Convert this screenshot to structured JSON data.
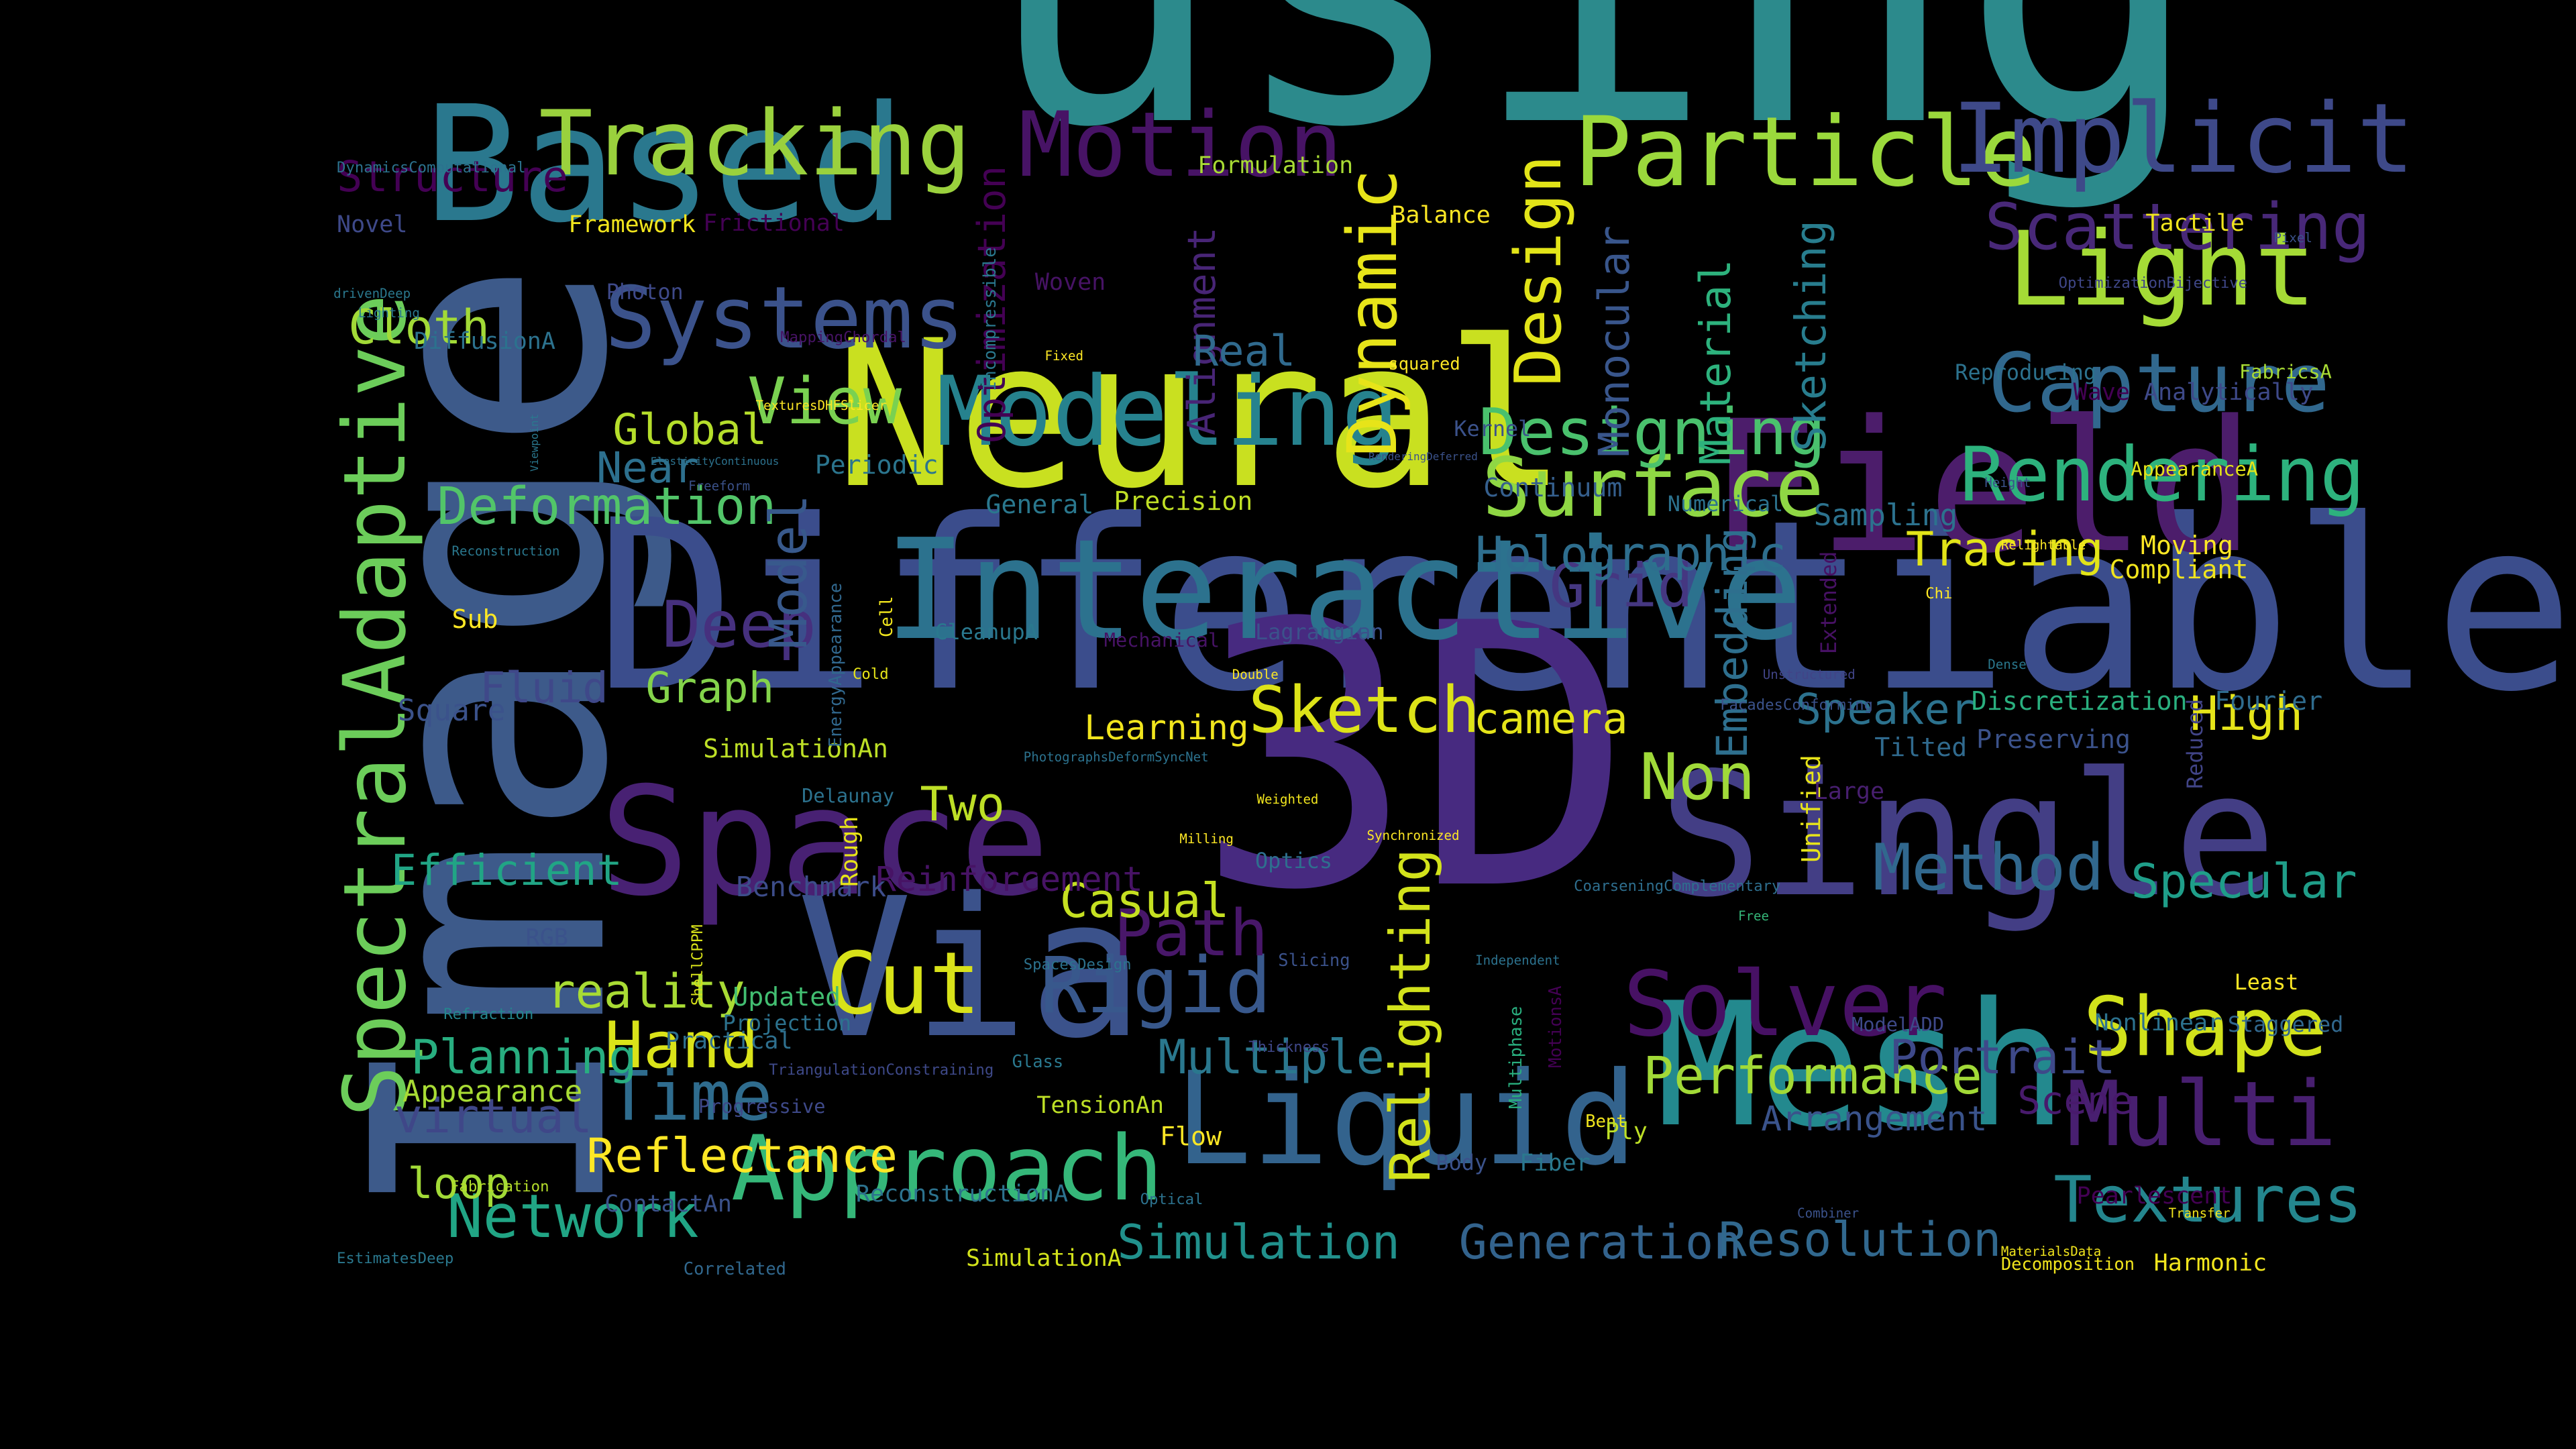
{
  "words": [
    {
      "text": "using",
      "size": 190,
      "color": "#2c8a8c"
    },
    {
      "text": "Image",
      "size": 150,
      "color": "#3d5a8a"
    },
    {
      "text": "Differentiable",
      "size": 110,
      "color": "#3b4d8c"
    },
    {
      "text": "3D",
      "size": 170,
      "color": "#472a80"
    },
    {
      "text": "Neural",
      "size": 95,
      "color": "#c9e020"
    },
    {
      "text": "Field",
      "size": 85,
      "color": "#4c1d6b"
    },
    {
      "text": "Via",
      "size": 90,
      "color": "#3b528b"
    },
    {
      "text": "Mesh",
      "size": 80,
      "color": "#23898e"
    },
    {
      "text": "Single",
      "size": 80,
      "color": "#433e85"
    },
    {
      "text": "Based",
      "size": 75,
      "color": "#2a788e"
    },
    {
      "text": "Space",
      "size": 70,
      "color": "#482173"
    },
    {
      "text": "Interactive",
      "size": 65,
      "color": "#2c728e"
    },
    {
      "text": "Liquid",
      "size": 60,
      "color": "#33638d"
    },
    {
      "text": "Light",
      "size": 48,
      "color": "#a5db36"
    },
    {
      "text": "Particle",
      "size": 45,
      "color": "#9bd93c"
    },
    {
      "text": "Implicit",
      "size": 45,
      "color": "#3e4989"
    },
    {
      "text": "Tracking",
      "size": 42,
      "color": "#9ad13d"
    },
    {
      "text": "Motion",
      "size": 42,
      "color": "#471365"
    },
    {
      "text": "Modeling",
      "size": 45,
      "color": "#26828e"
    },
    {
      "text": "Systems",
      "size": 40,
      "color": "#3b528b"
    },
    {
      "text": "Capture",
      "size": 38,
      "color": "#31688e"
    },
    {
      "text": "Rendering",
      "size": 35,
      "color": "#2db27d"
    },
    {
      "text": "Surface",
      "size": 38,
      "color": "#8fd744"
    },
    {
      "text": "Approach",
      "size": 42,
      "color": "#35b779"
    },
    {
      "text": "Multi",
      "size": 42,
      "color": "#481f70"
    },
    {
      "text": "Shape",
      "size": 38,
      "color": "#d2e21b"
    },
    {
      "text": "Solver",
      "size": 42,
      "color": "#471164"
    },
    {
      "text": "Rigid",
      "size": 36,
      "color": "#38588c"
    },
    {
      "text": "Cut",
      "size": 40,
      "color": "#d8e219"
    },
    {
      "text": "SpectralAdaptive",
      "size": 40,
      "color": "#6ccd5a"
    },
    {
      "text": "Textures",
      "size": 30,
      "color": "#24868e"
    },
    {
      "text": "Method",
      "size": 30,
      "color": "#31688e"
    },
    {
      "text": "Sketch",
      "size": 30,
      "color": "#dde318"
    },
    {
      "text": "Non",
      "size": 30,
      "color": "#a0da39"
    },
    {
      "text": "Grid",
      "size": 28,
      "color": "#453781"
    },
    {
      "text": "Design",
      "size": 30,
      "color": "#e2e418"
    },
    {
      "text": "Dynamic",
      "size": 32,
      "color": "#e7e419"
    },
    {
      "text": "Time",
      "size": 32,
      "color": "#2f6c8e"
    },
    {
      "text": "Hand",
      "size": 30,
      "color": "#dae319"
    },
    {
      "text": "Network",
      "size": 28,
      "color": "#21a585"
    },
    {
      "text": "Designing",
      "size": 30,
      "color": "#4ac16d"
    },
    {
      "text": "Scattering",
      "size": 30,
      "color": "#482878"
    },
    {
      "text": "Deep",
      "size": 30,
      "color": "#46307e"
    },
    {
      "text": "Path",
      "size": 30,
      "color": "#481769"
    },
    {
      "text": "Relighting",
      "size": 26,
      "color": "#d2e21b"
    },
    {
      "text": "Performance",
      "size": 24,
      "color": "#a2da37"
    },
    {
      "text": "View",
      "size": 30,
      "color": "#7ad151"
    },
    {
      "text": "Simulation",
      "size": 22,
      "color": "#21918c"
    },
    {
      "text": "Generation",
      "size": 22,
      "color": "#33638d"
    },
    {
      "text": "Resolution",
      "size": 22,
      "color": "#31688e"
    },
    {
      "text": "Portrait",
      "size": 22,
      "color": "#3e4989"
    },
    {
      "text": "Multiple",
      "size": 22,
      "color": "#2a788e"
    },
    {
      "text": "Casual",
      "size": 22,
      "color": "#c5e021"
    },
    {
      "text": "Two",
      "size": 22,
      "color": "#bddf26"
    },
    {
      "text": "Reflectance",
      "size": 22,
      "color": "#fde725"
    },
    {
      "text": "Specular",
      "size": 22,
      "color": "#1f9e89"
    },
    {
      "text": "High",
      "size": 22,
      "color": "#e5e419"
    },
    {
      "text": "Tracing",
      "size": 22,
      "color": "#e2e418"
    },
    {
      "text": "Holographic",
      "size": 22,
      "color": "#2e6e8e"
    },
    {
      "text": "Deformation",
      "size": 24,
      "color": "#52c569"
    },
    {
      "text": "Planning",
      "size": 22,
      "color": "#28ae80"
    },
    {
      "text": "Efficient",
      "size": 20,
      "color": "#21a585"
    },
    {
      "text": "virtual",
      "size": 22,
      "color": "#3f4788"
    },
    {
      "text": "reality",
      "size": 22,
      "color": "#a8db34"
    },
    {
      "text": "Structure",
      "size": 20,
      "color": "#440154"
    },
    {
      "text": "Cloth",
      "size": 22,
      "color": "#a2da37"
    },
    {
      "text": "Global",
      "size": 20,
      "color": "#b5de2b"
    },
    {
      "text": "Near",
      "size": 20,
      "color": "#2d708e"
    },
    {
      "text": "Graph",
      "size": 20,
      "color": "#84d44b"
    },
    {
      "text": "Fluid",
      "size": 20,
      "color": "#3f4889"
    },
    {
      "text": "Model",
      "size": 24,
      "color": "#38598c"
    },
    {
      "text": "Embedding",
      "size": 20,
      "color": "#2e6f8e"
    },
    {
      "text": "Material",
      "size": 20,
      "color": "#2db27d"
    },
    {
      "text": "Monocular",
      "size": 20,
      "color": "#39568c"
    },
    {
      "text": "Sketching",
      "size": 20,
      "color": "#287d8e"
    },
    {
      "text": "Optimization",
      "size": 18,
      "color": "#440154"
    },
    {
      "text": "Alignment",
      "size": 18,
      "color": "#482576"
    },
    {
      "text": "camera",
      "size": 20,
      "color": "#e5e419"
    },
    {
      "text": "Speaker",
      "size": 20,
      "color": "#2c728e"
    },
    {
      "text": "Real",
      "size": 20,
      "color": "#306a8e"
    },
    {
      "text": "Learning",
      "size": 16,
      "color": "#f1e51d"
    },
    {
      "text": "Reinforcement",
      "size": 16,
      "color": "#471365"
    },
    {
      "text": "Benchmark",
      "size": 13,
      "color": "#3d4d8a"
    },
    {
      "text": "Arrangement",
      "size": 16,
      "color": "#3a538b"
    },
    {
      "text": "Scene",
      "size": 18,
      "color": "#481a6c"
    },
    {
      "text": "Appearance",
      "size": 14,
      "color": "#a8db34"
    },
    {
      "text": "loop",
      "size": 20,
      "color": "#a2da37"
    },
    {
      "text": "Square",
      "size": 14,
      "color": "#3b528b"
    },
    {
      "text": "Sub",
      "size": 12,
      "color": "#fde725"
    },
    {
      "text": "Periodic",
      "size": 12,
      "color": "#2b758e"
    },
    {
      "text": "Precision",
      "size": 12,
      "color": "#c0df25"
    },
    {
      "text": "General",
      "size": 12,
      "color": "#2a788e"
    },
    {
      "text": "Continuum",
      "size": 12,
      "color": "#355f8d"
    },
    {
      "text": "Sampling",
      "size": 14,
      "color": "#2c728e"
    },
    {
      "text": "Compliant",
      "size": 12,
      "color": "#f1e51d"
    },
    {
      "text": "Moving",
      "size": 12,
      "color": "#fde725"
    },
    {
      "text": "Discretization",
      "size": 12,
      "color": "#2ab07f"
    },
    {
      "text": "Fourier",
      "size": 12,
      "color": "#2f6c8e"
    },
    {
      "text": "Preserving",
      "size": 12,
      "color": "#3b528b"
    },
    {
      "text": "Tilted",
      "size": 12,
      "color": "#306a8e"
    },
    {
      "text": "Unified",
      "size": 12,
      "color": "#e7e419"
    },
    {
      "text": "Extended",
      "size": 10,
      "color": "#471164"
    },
    {
      "text": "Reduced",
      "size": 10,
      "color": "#414487"
    },
    {
      "text": "Large",
      "size": 11,
      "color": "#481f70"
    },
    {
      "text": "Rough",
      "size": 11,
      "color": "#e7e419"
    },
    {
      "text": "Delaunay",
      "size": 9,
      "color": "#2c728e"
    },
    {
      "text": "SimulationAn",
      "size": 12,
      "color": "#bddf26"
    },
    {
      "text": "Updated",
      "size": 12,
      "color": "#42be71"
    },
    {
      "text": "Projection",
      "size": 10,
      "color": "#2c728e"
    },
    {
      "text": "Practical",
      "size": 11,
      "color": "#2e6f8e"
    },
    {
      "text": "Progressive",
      "size": 9,
      "color": "#3e4989"
    },
    {
      "text": "TensionAn",
      "size": 11,
      "color": "#bddf26"
    },
    {
      "text": "Flow",
      "size": 12,
      "color": "#fde725"
    },
    {
      "text": "ReconstructionA",
      "size": 11,
      "color": "#2c728e"
    },
    {
      "text": "SimulationA",
      "size": 11,
      "color": "#d2e21b"
    },
    {
      "text": "ContactAn",
      "size": 11,
      "color": "#3b528b"
    },
    {
      "text": "Correlated",
      "size": 8,
      "color": "#31688e"
    },
    {
      "text": "EstimatesDeep",
      "size": 7,
      "color": "#2a788e"
    },
    {
      "text": "Fabrication",
      "size": 7,
      "color": "#b5de2b"
    },
    {
      "text": "Refraction",
      "size": 7,
      "color": "#24868e"
    },
    {
      "text": "ShellCPPM",
      "size": 7,
      "color": "#d8e219"
    },
    {
      "text": "Glass",
      "size": 8,
      "color": "#2a788e"
    },
    {
      "text": "TriangulationConstraining",
      "size": 7,
      "color": "#3e4989"
    },
    {
      "text": "SpacesDesign",
      "size": 7,
      "color": "#2c728e"
    },
    {
      "text": "Slicing",
      "size": 8,
      "color": "#3b528b"
    },
    {
      "text": "Thickness",
      "size": 7,
      "color": "#3f4788"
    },
    {
      "text": "Optical",
      "size": 7,
      "color": "#2c728e"
    },
    {
      "text": "Body",
      "size": 10,
      "color": "#3b528b"
    },
    {
      "text": "Fiber",
      "size": 11,
      "color": "#2a788e"
    },
    {
      "text": "Bent",
      "size": 8,
      "color": "#f1e51d"
    },
    {
      "text": "Ply",
      "size": 11,
      "color": "#bddf26"
    },
    {
      "text": "MotionsA",
      "size": 8,
      "color": "#440154"
    },
    {
      "text": "Multiphase",
      "size": 8,
      "color": "#29af7f"
    },
    {
      "text": "Independent",
      "size": 6,
      "color": "#2c728e"
    },
    {
      "text": "Free",
      "size": 6,
      "color": "#35b779"
    },
    {
      "text": "CoarseningComplementary",
      "size": 7,
      "color": "#2e6e8e"
    },
    {
      "text": "Synchronized",
      "size": 6,
      "color": "#fde725"
    },
    {
      "text": "Milling",
      "size": 6,
      "color": "#fde725"
    },
    {
      "text": "Weighted",
      "size": 6,
      "color": "#f1e51d"
    },
    {
      "text": "Optics",
      "size": 10,
      "color": "#2e6f8e"
    },
    {
      "text": "PhotographsDeformSyncNet",
      "size": 6,
      "color": "#2c728e"
    },
    {
      "text": "Double",
      "size": 6,
      "color": "#fde725"
    },
    {
      "text": "Mechanical",
      "size": 9,
      "color": "#471365"
    },
    {
      "text": "Lagrangian",
      "size": 10,
      "color": "#3b528b"
    },
    {
      "text": "CleanupA",
      "size": 10,
      "color": "#2a788e"
    },
    {
      "text": "Cold",
      "size": 7,
      "color": "#e5e419"
    },
    {
      "text": "Cell",
      "size": 8,
      "color": "#f1e51d"
    },
    {
      "text": "EnergyAppearance",
      "size": 8,
      "color": "#31688e"
    },
    {
      "text": "Unstructured",
      "size": 6,
      "color": "#414487"
    },
    {
      "text": "FaçadesConforming",
      "size": 7,
      "color": "#3b528b"
    },
    {
      "text": "Dense",
      "size": 6,
      "color": "#2a788e"
    },
    {
      "text": "Chi",
      "size": 7,
      "color": "#fde725"
    },
    {
      "text": "Relightable",
      "size": 6,
      "color": "#fde725"
    },
    {
      "text": "Numerical",
      "size": 10,
      "color": "#2c728e"
    },
    {
      "text": "Height",
      "size": 6,
      "color": "#3b528b"
    },
    {
      "text": "AppearanceA",
      "size": 9,
      "color": "#e5e419"
    },
    {
      "text": "RenderingDeferred",
      "size": 5,
      "color": "#3b528b"
    },
    {
      "text": "Kernel",
      "size": 10,
      "color": "#3b528b"
    },
    {
      "text": "Wave",
      "size": 11,
      "color": "#440154"
    },
    {
      "text": "Analytically",
      "size": 11,
      "color": "#3e4989"
    },
    {
      "text": "Reproducing",
      "size": 10,
      "color": "#2c728e"
    },
    {
      "text": "FabricsA",
      "size": 9,
      "color": "#a8db34"
    },
    {
      "text": "squared",
      "size": 8,
      "color": "#fde725"
    },
    {
      "text": "Fixed",
      "size": 6,
      "color": "#fde725"
    },
    {
      "text": "Woven",
      "size": 11,
      "color": "#471365"
    },
    {
      "text": "Photon",
      "size": 10,
      "color": "#3e4989"
    },
    {
      "text": "Incompressible",
      "size": 8,
      "color": "#2a788e"
    },
    {
      "text": "Formulation",
      "size": 11,
      "color": "#a8db34"
    },
    {
      "text": "Balance",
      "size": 11,
      "color": "#fde725"
    },
    {
      "text": "Tactile",
      "size": 11,
      "color": "#f1e51d"
    },
    {
      "text": "Pixel",
      "size": 6,
      "color": "#3b528b"
    },
    {
      "text": "OptimizationBijective",
      "size": 7,
      "color": "#3f4788"
    },
    {
      "text": "Frictional",
      "size": 11,
      "color": "#440154"
    },
    {
      "text": "Framework",
      "size": 11,
      "color": "#f1e51d"
    },
    {
      "text": "Novel",
      "size": 11,
      "color": "#3e4989"
    },
    {
      "text": "DynamicsComputational",
      "size": 7,
      "color": "#2c728e"
    },
    {
      "text": "drivenDeep",
      "size": 6,
      "color": "#2a788e"
    },
    {
      "text": "Lighting",
      "size": 6,
      "color": "#2a788e"
    },
    {
      "text": "DiffusionA",
      "size": 11,
      "color": "#2c728e"
    },
    {
      "text": "MappingChordal",
      "size": 7,
      "color": "#471365"
    },
    {
      "text": "TexturesDHFSlicer",
      "size": 6,
      "color": "#fde725"
    },
    {
      "text": "Viewpoint",
      "size": 5,
      "color": "#2a788e"
    },
    {
      "text": "ElasticityContinuous",
      "size": 5,
      "color": "#2c728e"
    },
    {
      "text": "Freeform",
      "size": 6,
      "color": "#3b528b"
    },
    {
      "text": "Reconstruction",
      "size": 6,
      "color": "#2a788e"
    },
    {
      "text": "RGB",
      "size": 11,
      "color": "#3b528b"
    },
    {
      "text": "Least",
      "size": 10,
      "color": "#fde725"
    },
    {
      "text": "Staggered",
      "size": 10,
      "color": "#31688e"
    },
    {
      "text": "Nonlinear",
      "size": 11,
      "color": "#2c728e"
    },
    {
      "text": "ModelADD",
      "size": 9,
      "color": "#3e4989"
    },
    {
      "text": "Pearlescent",
      "size": 11,
      "color": "#440154"
    },
    {
      "text": "Transfer",
      "size": 6,
      "color": "#f1e51d"
    },
    {
      "text": "Combiner",
      "size": 6,
      "color": "#3b528b"
    },
    {
      "text": "MaterialsData",
      "size": 6,
      "color": "#f1e51d"
    },
    {
      "text": "Decomposition",
      "size": 8,
      "color": "#f1e51d"
    },
    {
      "text": "Harmonic",
      "size": 11,
      "color": "#f1e51d"
    }
  ]
}
